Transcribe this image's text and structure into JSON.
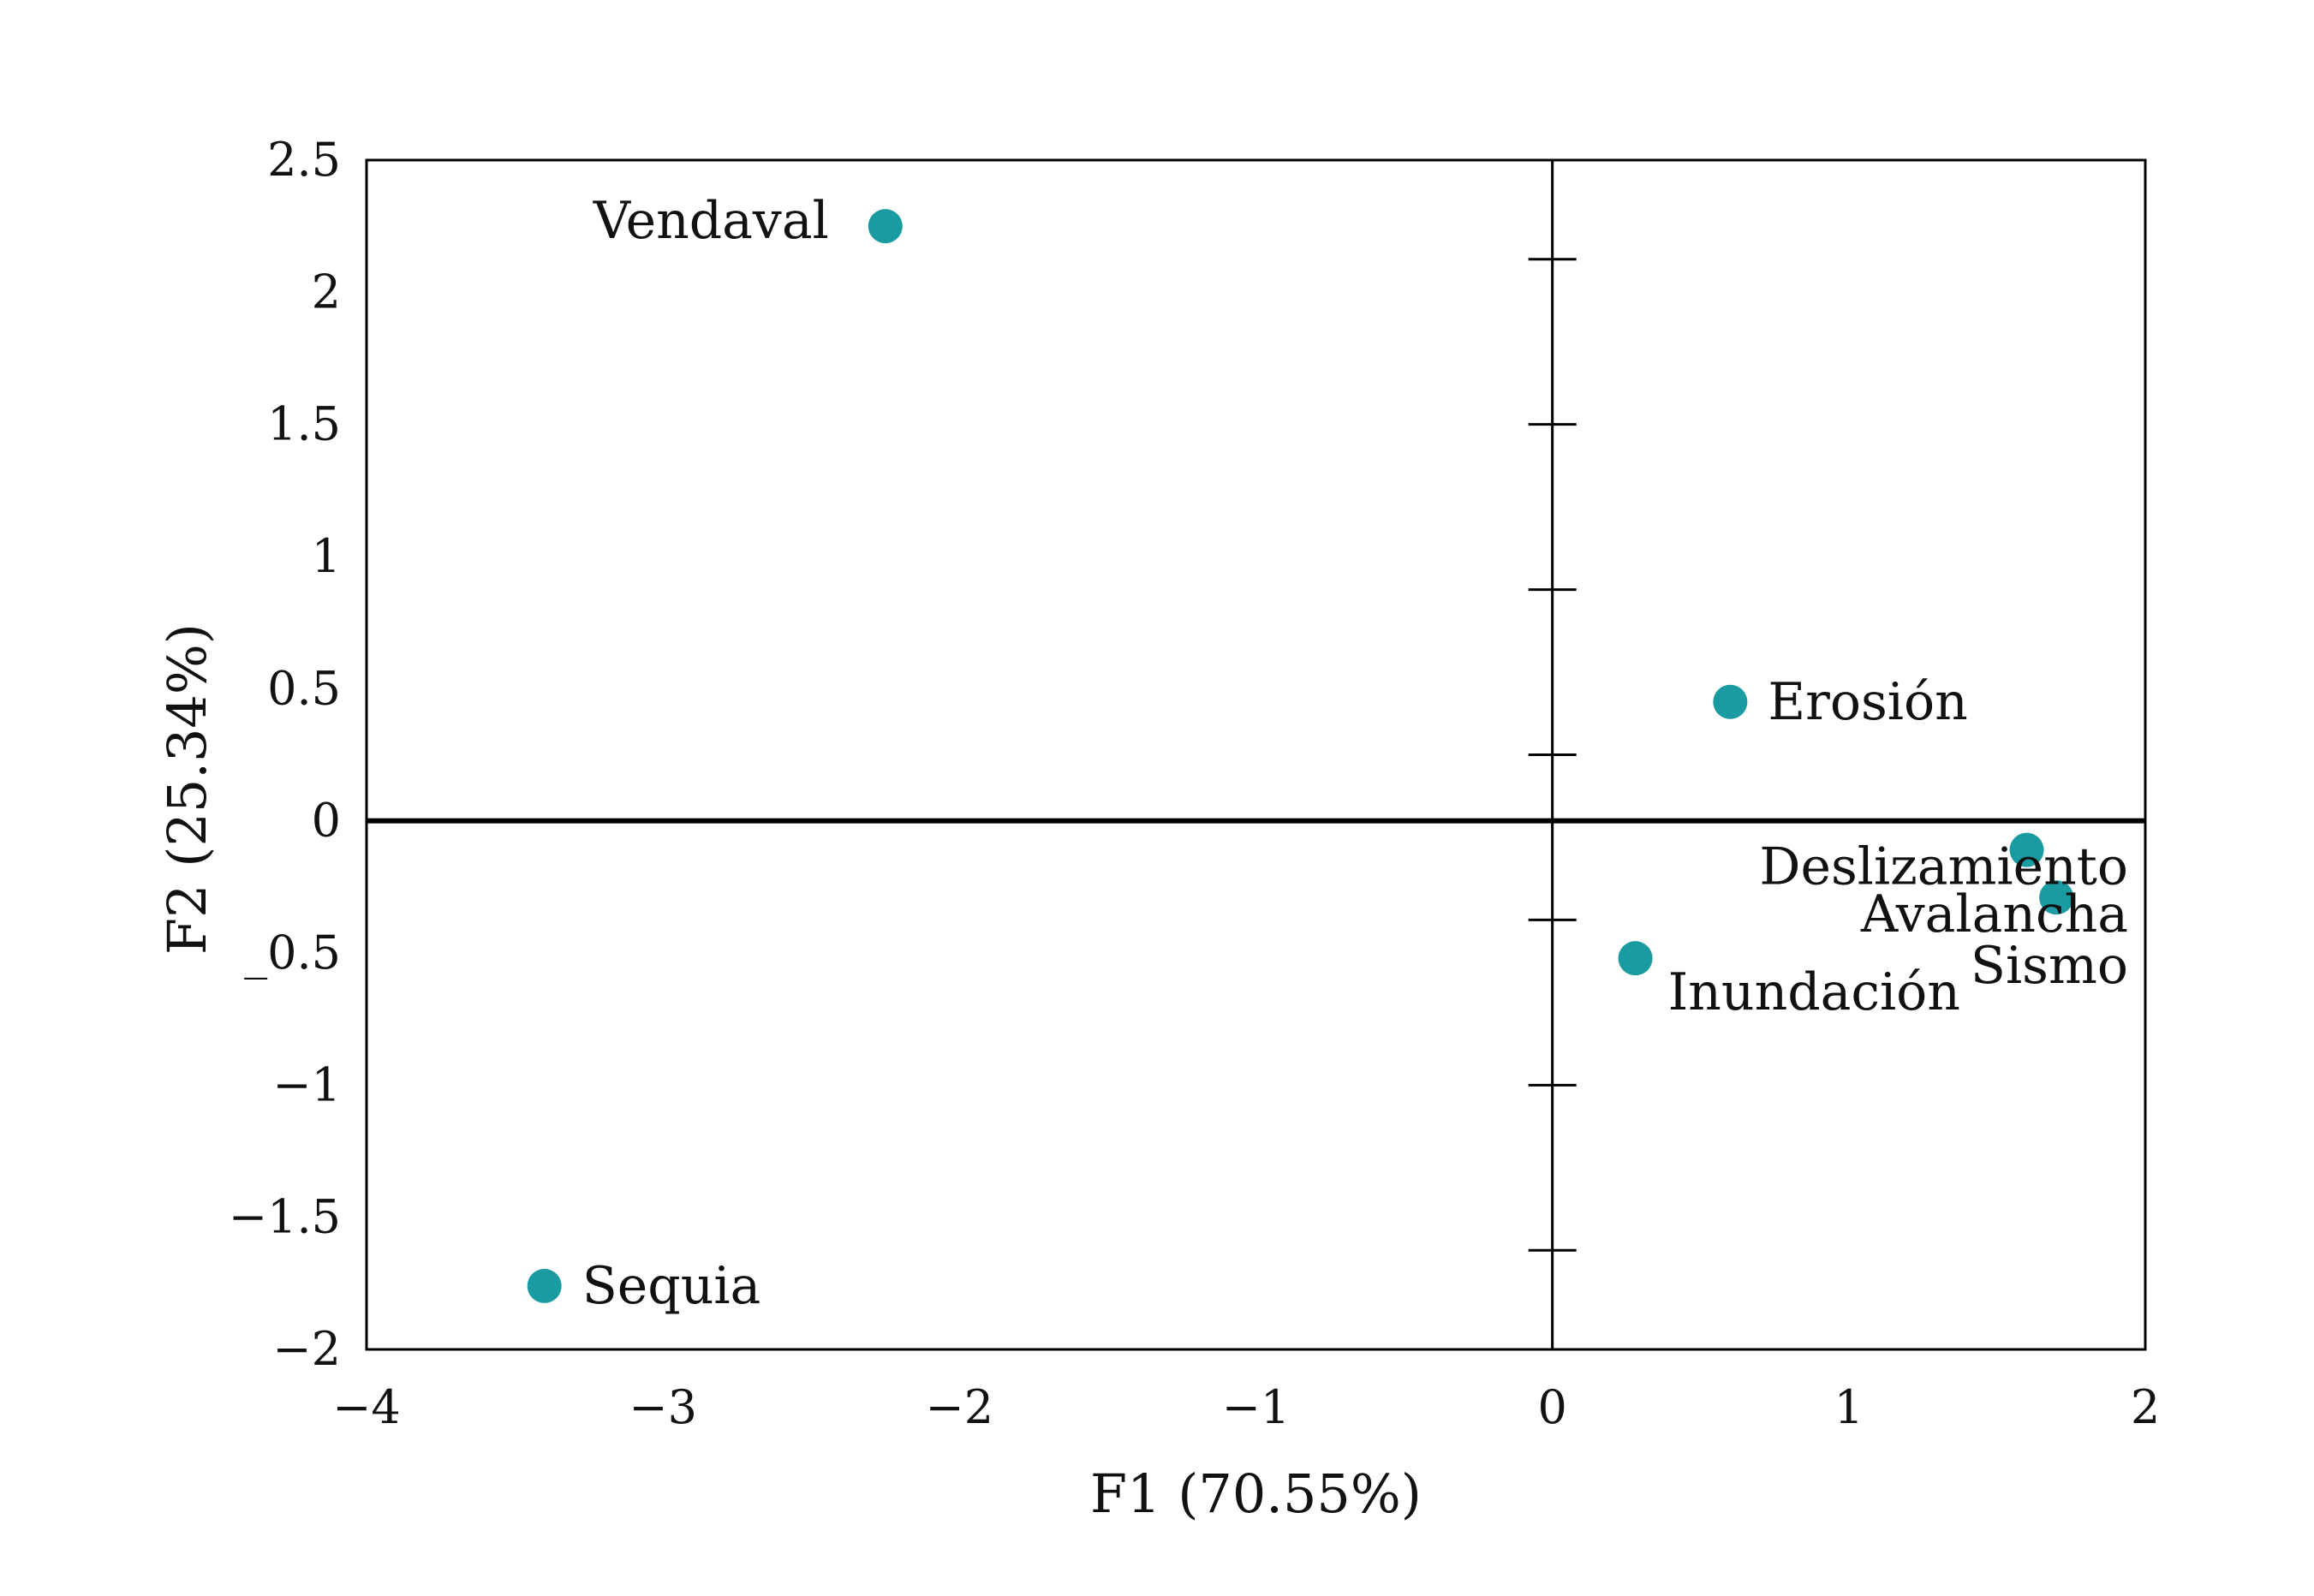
{
  "chart_data": {
    "type": "scatter",
    "title": "",
    "xlabel": "F1 (70.55%)",
    "ylabel": "F2 (25.34%)",
    "xlim": [
      -4,
      2
    ],
    "ylim": [
      -2,
      2.5
    ],
    "xticks": [
      -4,
      -3,
      -2,
      -1,
      0,
      1,
      2
    ],
    "xtick_labels": [
      "−4",
      "−3",
      "−2",
      "−1",
      "0",
      "1",
      "2"
    ],
    "yticks": [
      -2,
      -1.5,
      -1,
      -0.5,
      0,
      0.5,
      1,
      1.5,
      2,
      2.5
    ],
    "ytick_labels": [
      "−2",
      "−1.5",
      "−1",
      "_0.5",
      "0",
      "0.5",
      "1",
      "1.5",
      "2",
      "2.5"
    ],
    "zero_axis_ticks": [
      -1.625,
      -1,
      -0.375,
      0.25,
      0.875,
      1.5,
      2.125
    ],
    "grid": false,
    "marker_color": "#1a9aa1",
    "points": [
      {
        "label": "Vendaval",
        "x": -2.25,
        "y": 2.25,
        "label_side": "left"
      },
      {
        "label": "Erosión",
        "x": 0.6,
        "y": 0.45,
        "label_side": "right"
      },
      {
        "label": "Deslizamiento",
        "x": 1.6,
        "y": -0.11,
        "label_side": "below-left"
      },
      {
        "label": "Avalancha",
        "x": 1.7,
        "y": -0.29,
        "label_side": "below-left"
      },
      {
        "label": "Sismo",
        "x": 1.7,
        "y": -0.29,
        "label_side": "below-left-far"
      },
      {
        "label": "Inundación",
        "x": 0.28,
        "y": -0.52,
        "label_side": "below-right"
      },
      {
        "label": "Sequia",
        "x": -3.4,
        "y": -1.76,
        "label_side": "right"
      }
    ]
  }
}
